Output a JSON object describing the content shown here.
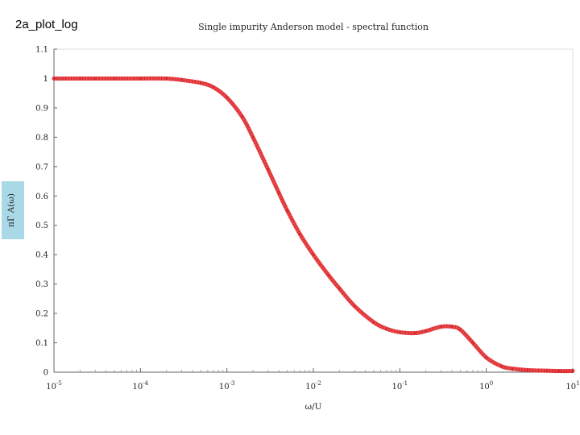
{
  "slide_label": "2a_plot_log",
  "chart_data": {
    "type": "line",
    "title": "Single impurity Anderson model - spectral function",
    "xlabel": "ω/U",
    "ylabel": "πΓ A(ω)",
    "xscale": "log",
    "xlim": [
      1e-05,
      10
    ],
    "ylim": [
      0,
      1.1
    ],
    "xtick_labels": [
      {
        "base": "10",
        "exp": "-5"
      },
      {
        "base": "10",
        "exp": "-4"
      },
      {
        "base": "10",
        "exp": "-3"
      },
      {
        "base": "10",
        "exp": "-2"
      },
      {
        "base": "10",
        "exp": "-1"
      },
      {
        "base": "10",
        "exp": "0"
      },
      {
        "base": "10",
        "exp": "1"
      }
    ],
    "ytick_labels": [
      "0",
      "0.1",
      "0.2",
      "0.3",
      "0.4",
      "0.5",
      "0.6",
      "0.7",
      "0.8",
      "0.9",
      "1",
      "1.1"
    ],
    "grid": false,
    "line_color": "#e8262a",
    "series": [
      {
        "x": [
          1e-05,
          2e-05,
          3e-05,
          5e-05,
          0.0001,
          0.0002,
          0.0003,
          0.0005,
          0.0007,
          0.001,
          0.0015,
          0.002,
          0.003,
          0.004,
          0.005,
          0.007,
          0.01,
          0.015,
          0.02,
          0.03,
          0.05,
          0.07,
          0.1,
          0.15,
          0.2,
          0.3,
          0.4,
          0.5,
          0.7,
          1,
          1.5,
          2,
          3,
          5,
          7,
          10
        ],
        "y": [
          1.0,
          1.0,
          1.0,
          1.0,
          1.0,
          1.0,
          0.995,
          0.985,
          0.97,
          0.935,
          0.87,
          0.8,
          0.69,
          0.61,
          0.55,
          0.47,
          0.4,
          0.33,
          0.285,
          0.225,
          0.17,
          0.148,
          0.136,
          0.133,
          0.14,
          0.155,
          0.155,
          0.145,
          0.1,
          0.05,
          0.02,
          0.012,
          0.007,
          0.005,
          0.004,
          0.004
        ]
      }
    ]
  }
}
